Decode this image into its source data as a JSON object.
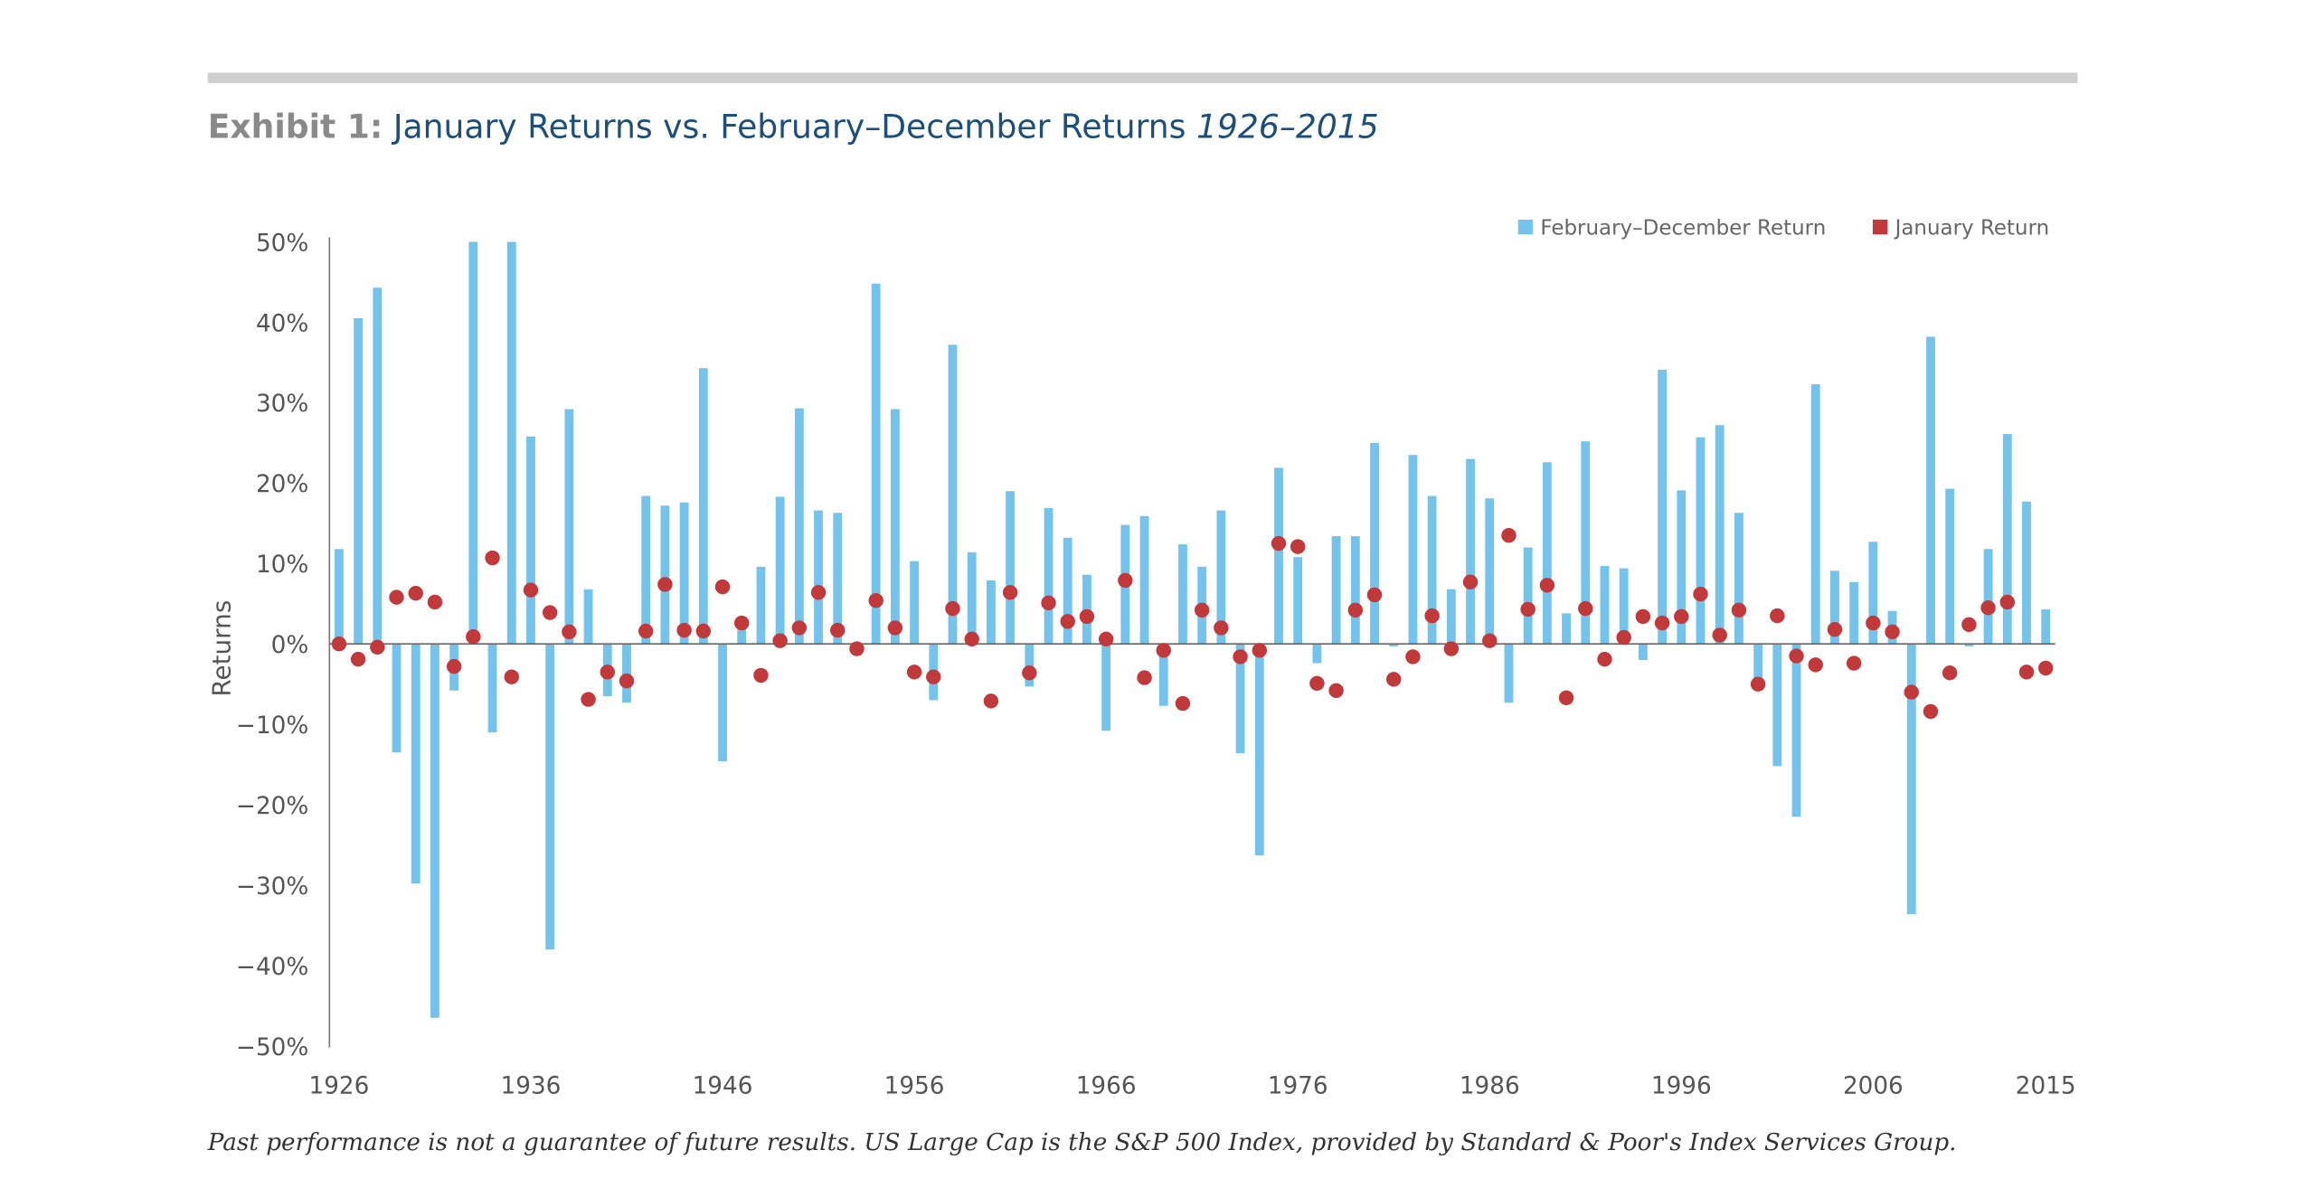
{
  "chart_data": {
    "type": "bar",
    "exhibit": "Exhibit 1:",
    "title": "January Returns vs. February–December Returns",
    "title_years": "1926–2015",
    "ylabel": "Returns",
    "footnote": "Past performance is not a guarantee of future results. US Large Cap is the S&P 500 Index, provided by Standard & Poor's Index Services Group.",
    "legend": "top-right",
    "grid": false,
    "x": [
      1926,
      1927,
      1928,
      1929,
      1930,
      1931,
      1932,
      1933,
      1934,
      1935,
      1936,
      1937,
      1938,
      1939,
      1940,
      1941,
      1942,
      1943,
      1944,
      1945,
      1946,
      1947,
      1948,
      1949,
      1950,
      1951,
      1952,
      1953,
      1954,
      1955,
      1956,
      1957,
      1958,
      1959,
      1960,
      1961,
      1962,
      1963,
      1964,
      1965,
      1966,
      1967,
      1968,
      1969,
      1970,
      1971,
      1972,
      1973,
      1974,
      1975,
      1976,
      1977,
      1978,
      1979,
      1980,
      1981,
      1982,
      1983,
      1984,
      1985,
      1986,
      1987,
      1988,
      1989,
      1990,
      1991,
      1992,
      1993,
      1994,
      1995,
      1996,
      1997,
      1998,
      1999,
      2000,
      2001,
      2002,
      2003,
      2004,
      2005,
      2006,
      2007,
      2008,
      2009,
      2010,
      2011,
      2012,
      2013,
      2014,
      2015
    ],
    "xlim": [
      1925.5,
      2015.5
    ],
    "xticks": [
      1926,
      1936,
      1946,
      1956,
      1966,
      1976,
      1986,
      1996,
      2006,
      2015
    ],
    "ylim": [
      -50,
      50
    ],
    "yticks": [
      {
        "value": 50,
        "label": "50%"
      },
      {
        "value": 40,
        "label": "40%"
      },
      {
        "value": 30,
        "label": "30%"
      },
      {
        "value": 20,
        "label": "20%"
      },
      {
        "value": 10,
        "label": "10%"
      },
      {
        "value": 0,
        "label": "0%"
      },
      {
        "value": -10,
        "label": "−10%"
      },
      {
        "value": -20,
        "label": "−20%"
      },
      {
        "value": -30,
        "label": "−30%"
      },
      {
        "value": -40,
        "label": "−40%"
      },
      {
        "value": -50,
        "label": "−50%"
      }
    ],
    "series": [
      {
        "name": "February–December Return",
        "type": "bar",
        "color": "#74c3ec",
        "values": [
          11.8,
          40.5,
          44.3,
          -13.5,
          -29.8,
          -46.5,
          -5.8,
          50,
          -11,
          50,
          25.8,
          -38,
          29.2,
          6.8,
          -6.5,
          -7.3,
          18.4,
          17.2,
          17.6,
          34.3,
          -14.6,
          2.5,
          9.6,
          18.3,
          29.3,
          16.6,
          16.3,
          -0.7,
          44.8,
          29.2,
          10.3,
          -7,
          37.2,
          11.4,
          7.9,
          19,
          -5.3,
          16.9,
          13.2,
          8.6,
          -10.8,
          14.8,
          15.9,
          -7.7,
          12.4,
          9.6,
          16.6,
          -13.6,
          -26.3,
          21.9,
          10.8,
          -2.4,
          13.4,
          13.4,
          25,
          -0.3,
          23.5,
          18.4,
          6.8,
          23,
          18.1,
          -7.3,
          12,
          22.6,
          3.8,
          25.2,
          9.7,
          9.4,
          -2,
          34.1,
          19.1,
          25.7,
          27.2,
          16.3,
          -5.1,
          -15.2,
          -21.5,
          32.3,
          9.1,
          7.7,
          12.7,
          4.1,
          -33.6,
          38.2,
          19.3,
          -0.3,
          11.8,
          26.1,
          17.7,
          4.3
        ]
      },
      {
        "name": "January Return",
        "type": "scatter",
        "color": "#c1393b",
        "values": [
          0,
          -1.9,
          -0.4,
          5.8,
          6.3,
          5.2,
          -2.8,
          0.9,
          10.7,
          -4.1,
          6.7,
          3.9,
          1.5,
          -6.9,
          -3.5,
          -4.6,
          1.6,
          7.4,
          1.7,
          1.6,
          7.1,
          2.6,
          -3.9,
          0.4,
          2,
          6.4,
          1.7,
          -0.6,
          5.4,
          2,
          -3.5,
          -4.1,
          4.4,
          0.6,
          -7.1,
          6.4,
          -3.6,
          5.1,
          2.8,
          3.4,
          0.6,
          7.9,
          -4.2,
          -0.8,
          -7.4,
          4.2,
          2,
          -1.6,
          -0.8,
          12.5,
          12.1,
          -4.9,
          -5.8,
          4.2,
          6.1,
          -4.4,
          -1.6,
          3.5,
          -0.6,
          7.7,
          0.4,
          13.5,
          4.3,
          7.3,
          -6.7,
          4.4,
          -1.9,
          0.8,
          3.4,
          2.6,
          3.4,
          6.2,
          1.1,
          4.2,
          -5,
          3.5,
          -1.5,
          -2.6,
          1.8,
          -2.4,
          2.6,
          1.5,
          -6,
          -8.4,
          -3.6,
          2.4,
          4.5,
          5.2,
          -3.5,
          -3
        ]
      }
    ]
  }
}
